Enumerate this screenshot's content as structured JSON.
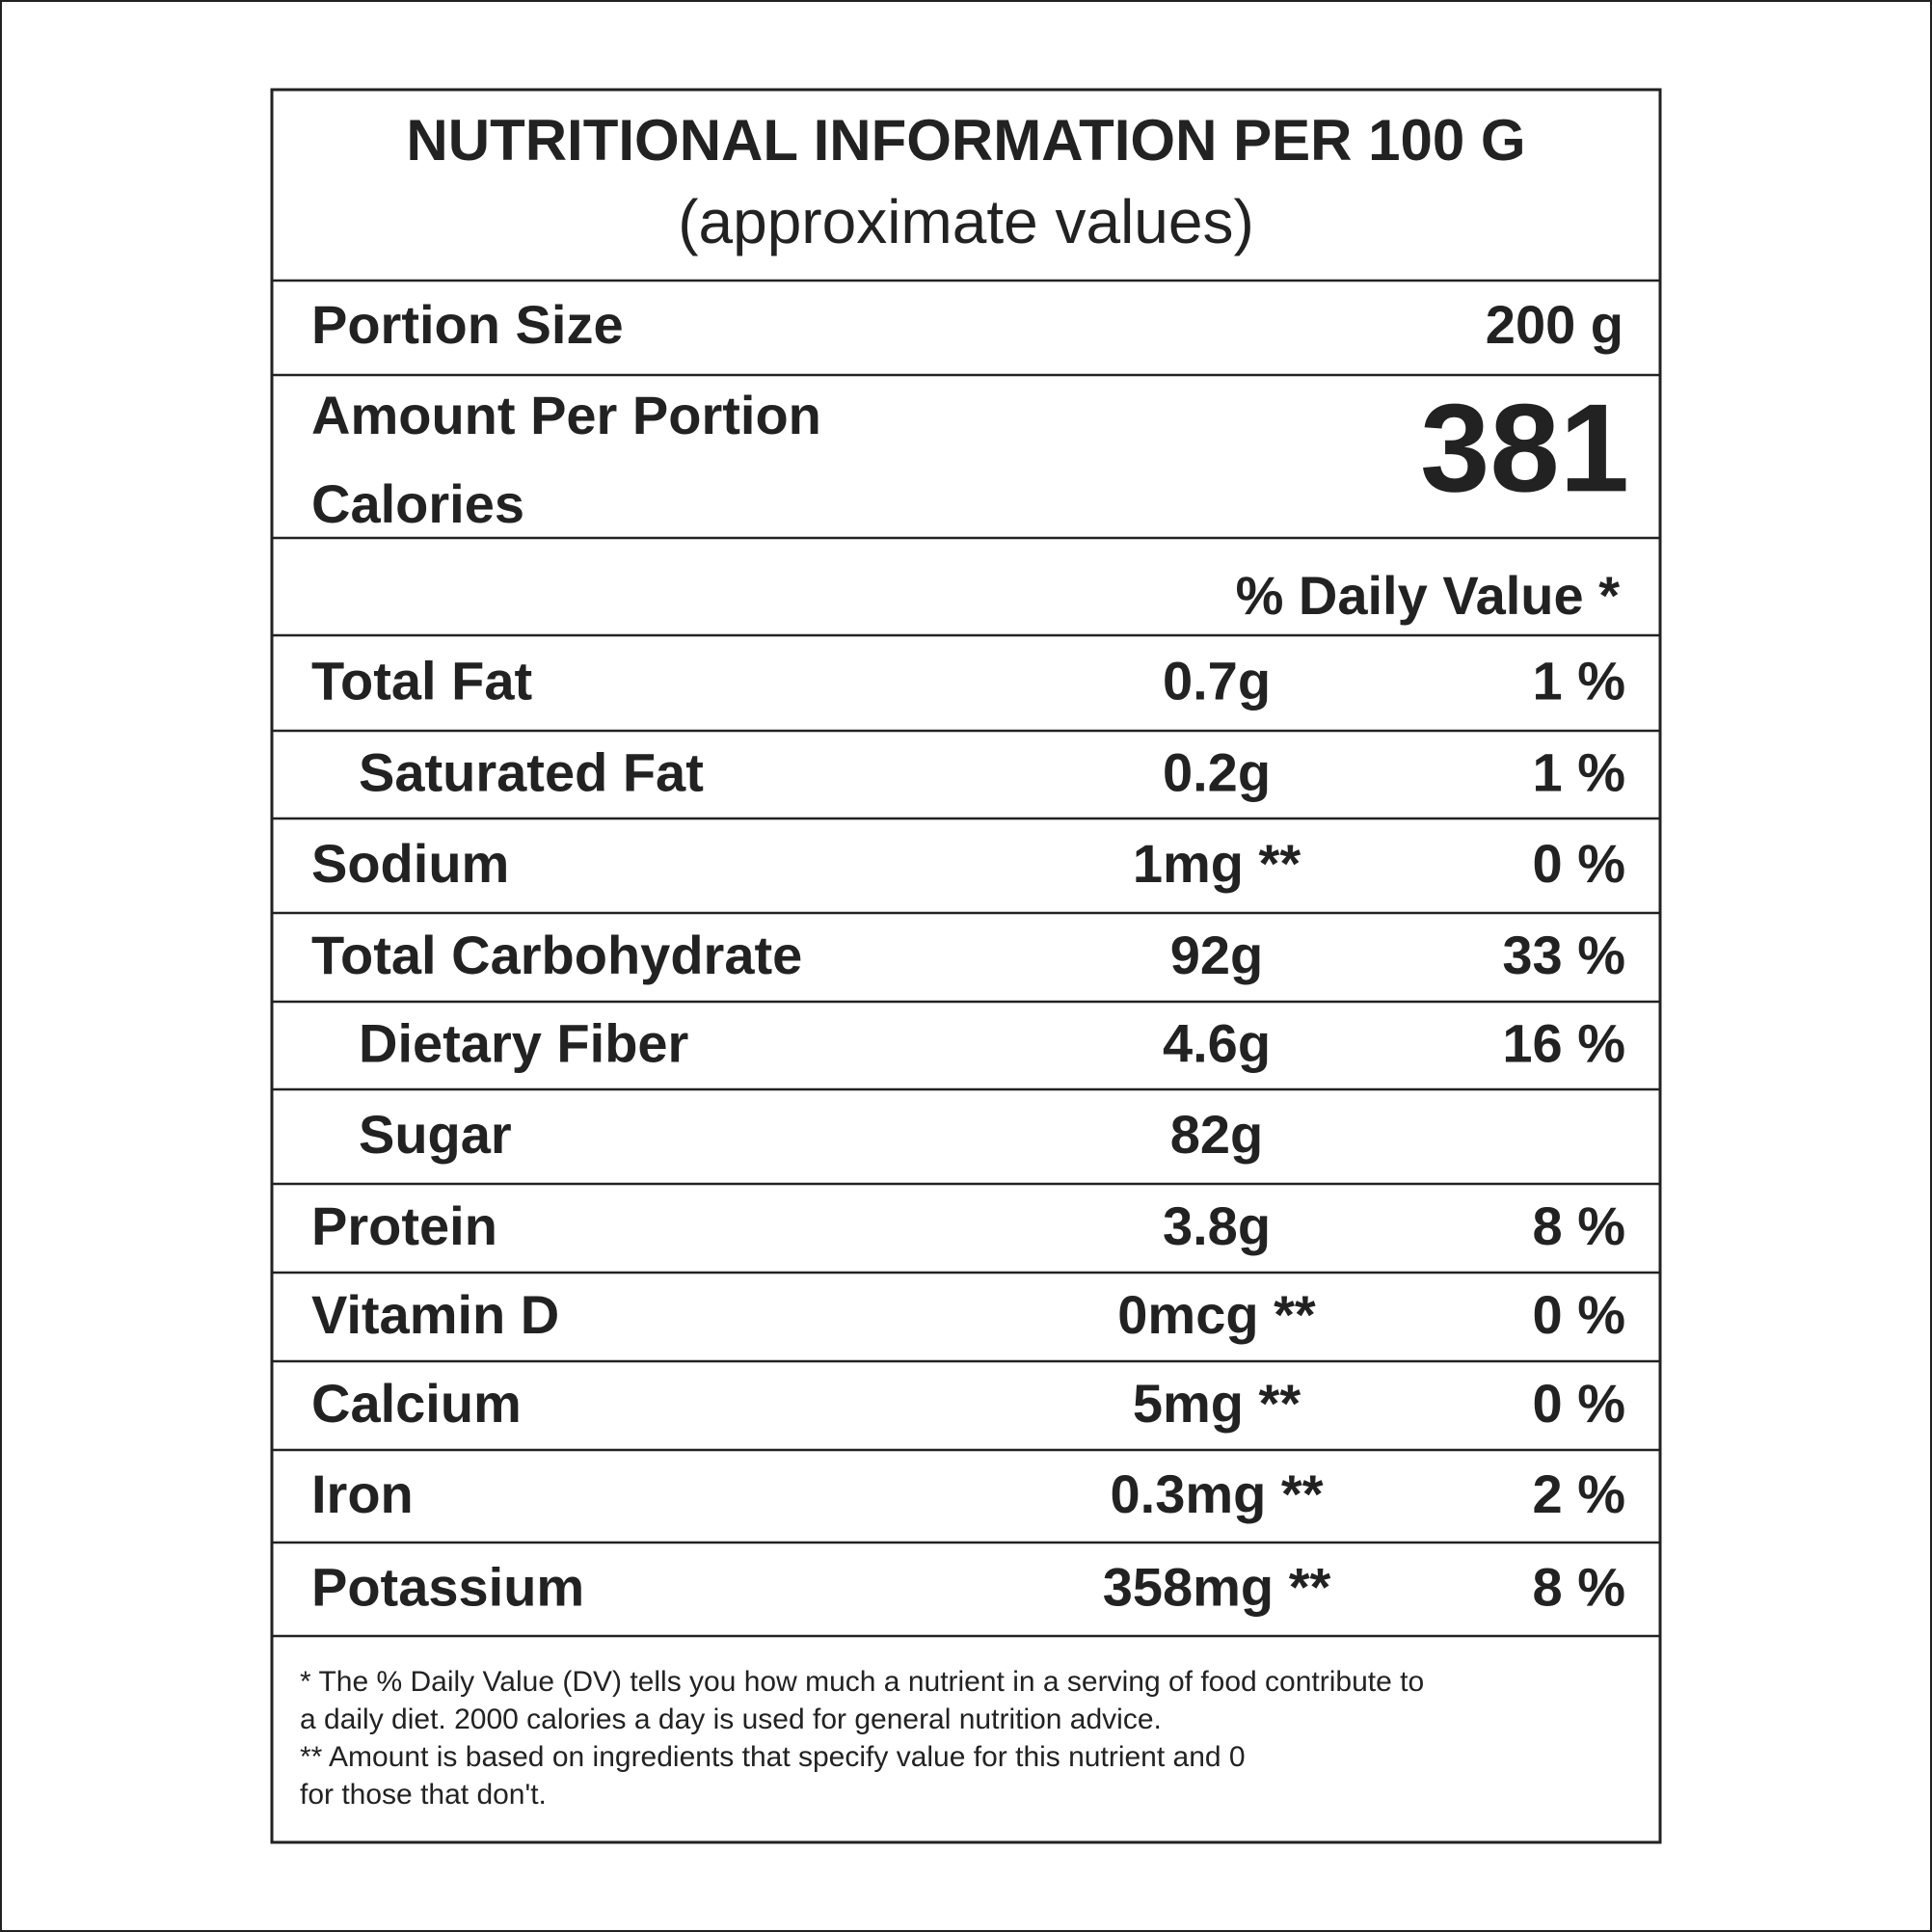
{
  "header": {
    "title": "NUTRITIONAL INFORMATION PER 100 G",
    "subtitle": "(approximate values)"
  },
  "portion": {
    "label": "Portion Size",
    "value": "200 g"
  },
  "calories": {
    "label_line1": "Amount Per Portion",
    "label_line2": "Calories",
    "value": "381"
  },
  "daily_value_header": "% Daily Value *",
  "rows": [
    {
      "name": "Total Fat",
      "amount": "0.7g",
      "dv": "1 %"
    },
    {
      "name": "Saturated Fat",
      "amount": "0.2g",
      "dv": "1 %",
      "indented": true
    },
    {
      "name": "Sodium",
      "amount": "1mg **",
      "dv": "0 %"
    },
    {
      "name": "Total Carbohydrate",
      "amount": "92g",
      "dv": "33 %"
    },
    {
      "name": "Dietary Fiber",
      "amount": "4.6g",
      "dv": "16 %",
      "indented": true
    },
    {
      "name": "Sugar",
      "amount": "82g",
      "indented": true
    },
    {
      "name": "Protein",
      "amount": "3.8g",
      "dv": "8 %"
    },
    {
      "name": "Vitamin D",
      "amount": "0mcg **",
      "dv": "0 %"
    },
    {
      "name": "Calcium",
      "amount": "5mg **",
      "dv": "0 %"
    },
    {
      "name": "Iron",
      "amount": "0.3mg **",
      "dv": "2 %"
    },
    {
      "name": "Potassium",
      "amount": "358mg **",
      "dv": "8 %"
    }
  ],
  "footnotes": [
    "* The % Daily Value (DV) tells you how much a nutrient in a serving of food contribute to",
    "a daily diet. 2000 calories a day is used for general nutrition advice.",
    "** Amount is based on ingredients that specify value for this nutrient and 0",
    "for those that don't."
  ]
}
